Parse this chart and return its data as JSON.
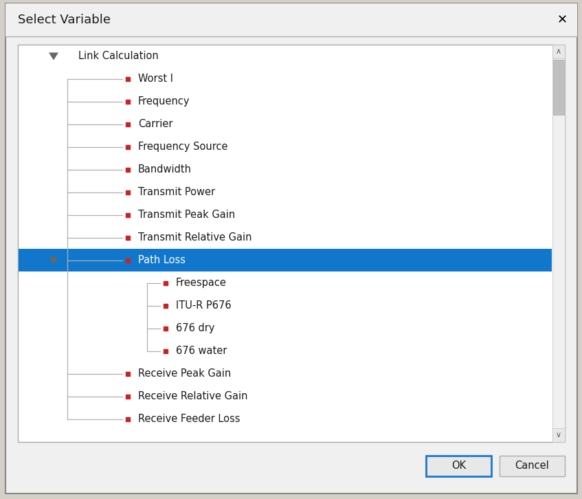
{
  "title": "Select Variable",
  "title_fontsize": 13,
  "bg_color": "#d4d0c8",
  "dialog_bg": "#f0f0f0",
  "panel_bg": "#ffffff",
  "panel_border": "#adadad",
  "close_btn_color": "#000000",
  "tree_items": [
    {
      "label": "Link Calculation",
      "level": 0,
      "has_arrow": true,
      "arrow_down": true,
      "selected": false
    },
    {
      "label": "Worst I",
      "level": 1,
      "has_arrow": false,
      "selected": false
    },
    {
      "label": "Frequency",
      "level": 1,
      "has_arrow": false,
      "selected": false
    },
    {
      "label": "Carrier",
      "level": 1,
      "has_arrow": false,
      "selected": false
    },
    {
      "label": "Frequency Source",
      "level": 1,
      "has_arrow": false,
      "selected": false
    },
    {
      "label": "Bandwidth",
      "level": 1,
      "has_arrow": false,
      "selected": false
    },
    {
      "label": "Transmit Power",
      "level": 1,
      "has_arrow": false,
      "selected": false
    },
    {
      "label": "Transmit Peak Gain",
      "level": 1,
      "has_arrow": false,
      "selected": false
    },
    {
      "label": "Transmit Relative Gain",
      "level": 1,
      "has_arrow": false,
      "selected": false
    },
    {
      "label": "Path Loss",
      "level": 1,
      "has_arrow": true,
      "arrow_down": true,
      "selected": true
    },
    {
      "label": "Freespace",
      "level": 2,
      "has_arrow": false,
      "selected": false
    },
    {
      "label": "ITU-R P676",
      "level": 2,
      "has_arrow": false,
      "selected": false
    },
    {
      "label": "676 dry",
      "level": 2,
      "has_arrow": false,
      "selected": false
    },
    {
      "label": "676 water",
      "level": 2,
      "has_arrow": false,
      "selected": false
    },
    {
      "label": "Receive Peak Gain",
      "level": 1,
      "has_arrow": false,
      "selected": false
    },
    {
      "label": "Receive Relative Gain",
      "level": 1,
      "has_arrow": false,
      "selected": false
    },
    {
      "label": "Receive Feeder Loss",
      "level": 1,
      "has_arrow": false,
      "selected": false
    }
  ],
  "ok_label": "OK",
  "cancel_label": "Cancel",
  "selected_bg": "#1177cc",
  "selected_fg": "#ffffff",
  "normal_fg": "#1a1a1a",
  "bullet_color": "#cc2222",
  "connector_color": "#b0b0b0",
  "scrollbar_bg": "#f0f0f0",
  "scrollbar_thumb": "#c0c0c0",
  "button_bg": "#e8e8e8",
  "button_border_ok": "#1877d2",
  "button_border_cancel": "#adadad",
  "row_fontsize": 10.5
}
